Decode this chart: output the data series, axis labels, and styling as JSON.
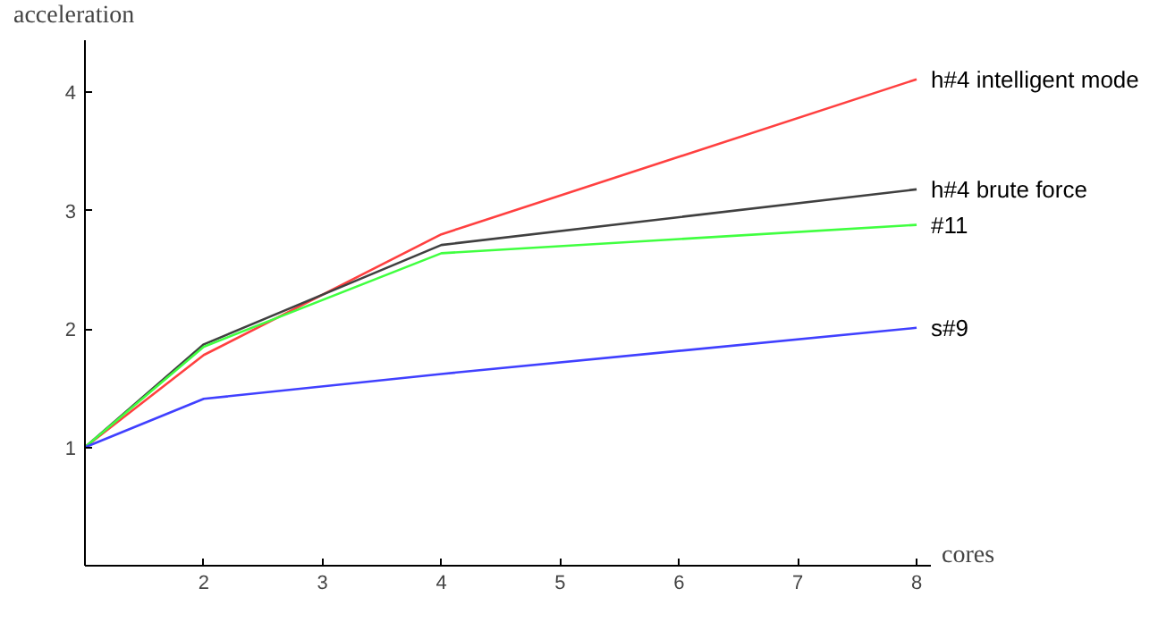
{
  "chart_data": {
    "type": "line",
    "xlabel": "cores",
    "ylabel": "acceleration",
    "x": [
      1,
      2,
      4,
      8
    ],
    "xlim": [
      1,
      8.12
    ],
    "ylim": [
      0,
      4.44
    ],
    "xticks": [
      2,
      3,
      4,
      5,
      6,
      7,
      8
    ],
    "yticks": [
      1,
      2,
      3,
      4
    ],
    "grid": false,
    "legend": false,
    "marker": "none",
    "line_style": "solid",
    "series": [
      {
        "name": "h#4 intelligent mode",
        "color": "#ff4040",
        "values": [
          1,
          1.78,
          2.8,
          4.11
        ]
      },
      {
        "name": "h#4 brute force",
        "color": "#404040",
        "values": [
          1,
          1.87,
          2.71,
          3.18
        ]
      },
      {
        "name": "#11",
        "color": "#40ff40",
        "values": [
          1,
          1.85,
          2.64,
          2.88
        ]
      },
      {
        "name": "s#9",
        "color": "#4040ff",
        "values": [
          1,
          1.41,
          1.62,
          2.01
        ]
      }
    ]
  }
}
